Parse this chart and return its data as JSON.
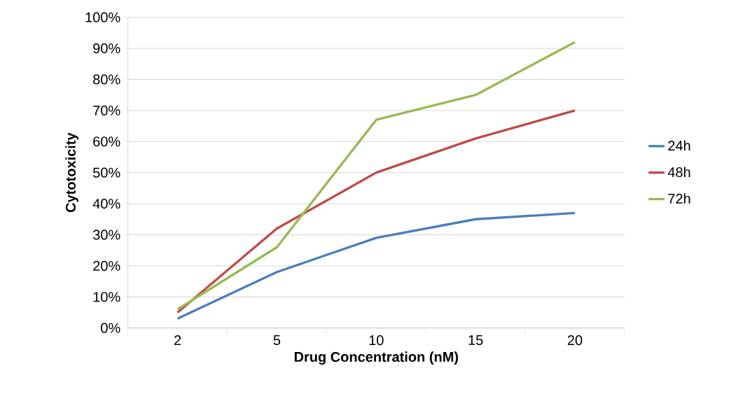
{
  "chart_data": {
    "type": "line",
    "xlabel": "Drug Concentration (nM)",
    "ylabel": "Cytotoxicity",
    "categories": [
      "2",
      "5",
      "10",
      "15",
      "20"
    ],
    "series": [
      {
        "name": "24h",
        "color": "#4a7ebb",
        "values": [
          3,
          18,
          29,
          35,
          37
        ]
      },
      {
        "name": "48h",
        "color": "#be4b48",
        "values": [
          5,
          32,
          50,
          61,
          70
        ]
      },
      {
        "name": "72h",
        "color": "#98b954",
        "values": [
          6,
          26,
          67,
          75,
          92
        ]
      }
    ],
    "ylim": [
      0,
      100
    ],
    "yticks": [
      {
        "value": 0,
        "label": "0%"
      },
      {
        "value": 10,
        "label": "10%"
      },
      {
        "value": 20,
        "label": "20%"
      },
      {
        "value": 30,
        "label": "30%"
      },
      {
        "value": 40,
        "label": "40%"
      },
      {
        "value": 50,
        "label": "50%"
      },
      {
        "value": 60,
        "label": "60%"
      },
      {
        "value": 70,
        "label": "70%"
      },
      {
        "value": 80,
        "label": "80%"
      },
      {
        "value": 90,
        "label": "90%"
      },
      {
        "value": 100,
        "label": "100%"
      }
    ],
    "grid": "y",
    "legend": "right",
    "marker": "none",
    "line_style": "solid"
  }
}
